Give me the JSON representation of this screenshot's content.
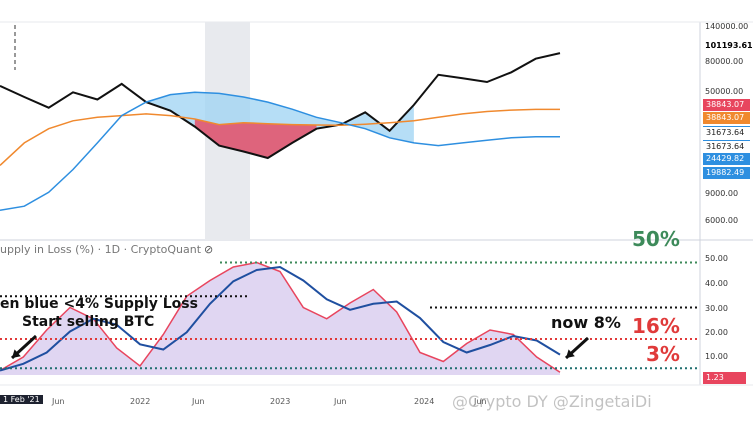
{
  "upper_axis": {
    "ticks": [
      "140000.00",
      "101193.61",
      "80000.00",
      "50000.00",
      "9000.00",
      "6000.00"
    ]
  },
  "price_labels": [
    {
      "text": "38843.07",
      "color": "#e8455e"
    },
    {
      "text": "38843.07",
      "color": "#f0892e"
    },
    {
      "text": "31673.64",
      "color": "#ffffff"
    },
    {
      "text": "31673.64",
      "color": "#ffffff"
    },
    {
      "text": "24429.82",
      "color": "#2e8fe0"
    },
    {
      "text": "19882.49",
      "color": "#2e8fe0"
    }
  ],
  "lower_panel": {
    "title": "upply in Loss (%) · 1D · CryptoQuant",
    "ticks": [
      "50.00",
      "40.00",
      "30.00",
      "20.00",
      "10.00"
    ],
    "last_value": "1.23"
  },
  "annotations": {
    "pct_50": "50%",
    "pct_16": "16%",
    "pct_3": "3%",
    "now": "now 8%",
    "when_blue": "en blue  <4% Supply Loss",
    "start_selling": "Start selling BTC",
    "watermark": "@Crypto DY @ZingetaiDi"
  },
  "x_axis": {
    "labels": [
      "1 Feb '21",
      "Jun",
      "2022",
      "Jun",
      "2023",
      "Jun",
      "2024",
      "Jun"
    ]
  },
  "chart_data": {
    "type": "line",
    "series": [
      {
        "name": "",
        "values": [
          58000,
          48000,
          40000,
          52000,
          46000,
          60000,
          44000,
          38000,
          29000,
          21000,
          19000,
          17000,
          22000,
          28000,
          30000,
          37000,
          27000,
          42000,
          70000,
          66000,
          62000,
          73000,
          92000,
          101193
        ]
      },
      {
        "name": "",
        "values": [
          15000,
          22000,
          28000,
          32000,
          34000,
          35000,
          36000,
          35000,
          33000,
          30000,
          31000,
          30500,
          30000,
          29800,
          29700,
          30200,
          31000,
          32000,
          34000,
          36000,
          37500,
          38400,
          38843,
          38843
        ]
      },
      {
        "name": "",
        "values": [
          7000,
          7500,
          9500,
          14000,
          22000,
          35000,
          44000,
          50000,
          52000,
          51000,
          48000,
          44000,
          39000,
          34000,
          31000,
          28000,
          24000,
          22000,
          21000,
          22000,
          23000,
          24000,
          24429,
          24429
        ]
      }
    ],
    "supply_in_loss": {
      "name": "",
      "values": [
        2,
        8,
        20,
        30,
        25,
        12,
        4,
        18,
        35,
        42,
        48,
        50,
        46,
        30,
        25,
        32,
        38,
        28,
        10,
        6,
        14,
        20,
        18,
        8,
        1.23
      ],
      "levels": [
        50,
        35,
        30,
        16,
        3
      ]
    }
  }
}
